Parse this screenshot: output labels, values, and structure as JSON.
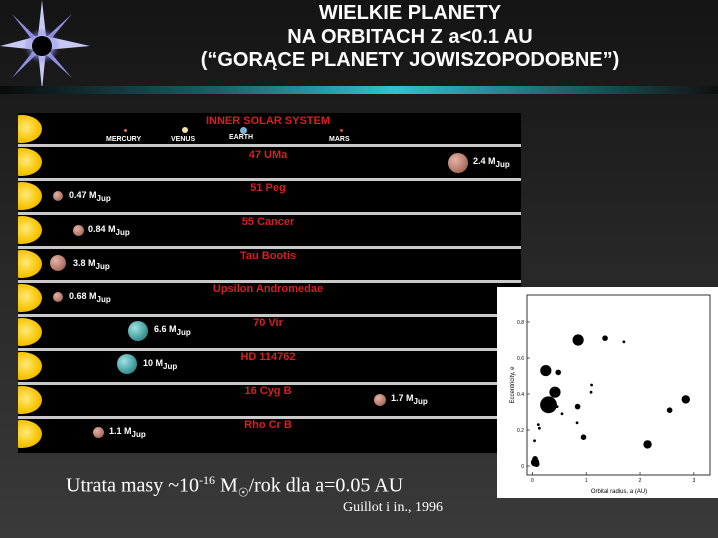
{
  "title": {
    "line1": "WIELKIE PLANETY",
    "line2": "NA ORBITACH Z a<0.1 AU",
    "line3": "(“GORĄCE PLANETY JOWISZOPODOBNE”)"
  },
  "inner_solar_system": {
    "label": "INNER SOLAR SYSTEM",
    "planets": [
      "MERCURY",
      "VENUS",
      "EARTH",
      "MARS"
    ]
  },
  "systems": [
    {
      "name": "47 UMa",
      "mass_value": "2.4 M",
      "mass_sub": "Jup",
      "color": "brown"
    },
    {
      "name": "51 Peg",
      "mass_value": "0.47 M",
      "mass_sub": "Jup",
      "color": "brown"
    },
    {
      "name": "55 Cancer",
      "mass_value": "0.84 M",
      "mass_sub": "Jup",
      "color": "brown"
    },
    {
      "name": "Tau Bootis",
      "mass_value": "3.8 M",
      "mass_sub": "Jup",
      "color": "brown"
    },
    {
      "name": "Upsilon Andromedae",
      "mass_value": "0.68 M",
      "mass_sub": "Jup",
      "color": "brown"
    },
    {
      "name": "70 Vir",
      "mass_value": "6.6 M",
      "mass_sub": "Jup",
      "color": "teal"
    },
    {
      "name": "HD 114762",
      "mass_value": "10 M",
      "mass_sub": "Jup",
      "color": "teal"
    },
    {
      "name": "16 Cyg B",
      "mass_value": "1.7 M",
      "mass_sub": "Jup",
      "color": "brown"
    },
    {
      "name": "Rho Cr B",
      "mass_value": "1.1 M",
      "mass_sub": "Jup",
      "color": "brown"
    }
  ],
  "chart": {
    "xlabel": "Orbital radius, a (AU)",
    "ylabel": "Eccentricity, e",
    "xticks": [
      "0",
      "1",
      "2",
      "3"
    ],
    "yticks": [
      "0",
      "0.2",
      "0.4",
      "0.6",
      "0.8"
    ]
  },
  "chart_data": {
    "type": "scatter",
    "xlabel": "Orbital radius, a (AU)",
    "ylabel": "Eccentricity, e",
    "xlim": [
      -0.1,
      3.3
    ],
    "ylim": [
      -0.05,
      0.95
    ],
    "points": [
      {
        "x": 0.05,
        "y": 0.02,
        "size": 3
      },
      {
        "x": 0.05,
        "y": 0.04,
        "size": 2
      },
      {
        "x": 0.08,
        "y": 0.01,
        "size": 2
      },
      {
        "x": 0.04,
        "y": 0.14,
        "size": 1
      },
      {
        "x": 0.11,
        "y": 0.23,
        "size": 1
      },
      {
        "x": 0.13,
        "y": 0.21,
        "size": 1
      },
      {
        "x": 0.25,
        "y": 0.53,
        "size": 4
      },
      {
        "x": 0.3,
        "y": 0.34,
        "size": 6
      },
      {
        "x": 0.42,
        "y": 0.41,
        "size": 4
      },
      {
        "x": 0.48,
        "y": 0.52,
        "size": 2
      },
      {
        "x": 0.46,
        "y": 0.33,
        "size": 1
      },
      {
        "x": 0.55,
        "y": 0.29,
        "size": 1
      },
      {
        "x": 0.85,
        "y": 0.7,
        "size": 4
      },
      {
        "x": 0.84,
        "y": 0.33,
        "size": 2
      },
      {
        "x": 0.83,
        "y": 0.24,
        "size": 1
      },
      {
        "x": 0.95,
        "y": 0.16,
        "size": 2
      },
      {
        "x": 1.1,
        "y": 0.45,
        "size": 1
      },
      {
        "x": 1.09,
        "y": 0.41,
        "size": 1
      },
      {
        "x": 1.35,
        "y": 0.71,
        "size": 2
      },
      {
        "x": 1.7,
        "y": 0.69,
        "size": 1
      },
      {
        "x": 2.14,
        "y": 0.12,
        "size": 3
      },
      {
        "x": 2.13,
        "y": 0.13,
        "size": 1
      },
      {
        "x": 2.55,
        "y": 0.31,
        "size": 2
      },
      {
        "x": 2.85,
        "y": 0.37,
        "size": 3
      }
    ]
  },
  "bottom": {
    "prefix": "Utrata masy ~10",
    "exponent": "-16",
    "suffix": " M",
    "sun_symbol": "☉",
    "tail": "/rok dla a=0.05 AU"
  },
  "citation": "Guillot i in., 1996"
}
